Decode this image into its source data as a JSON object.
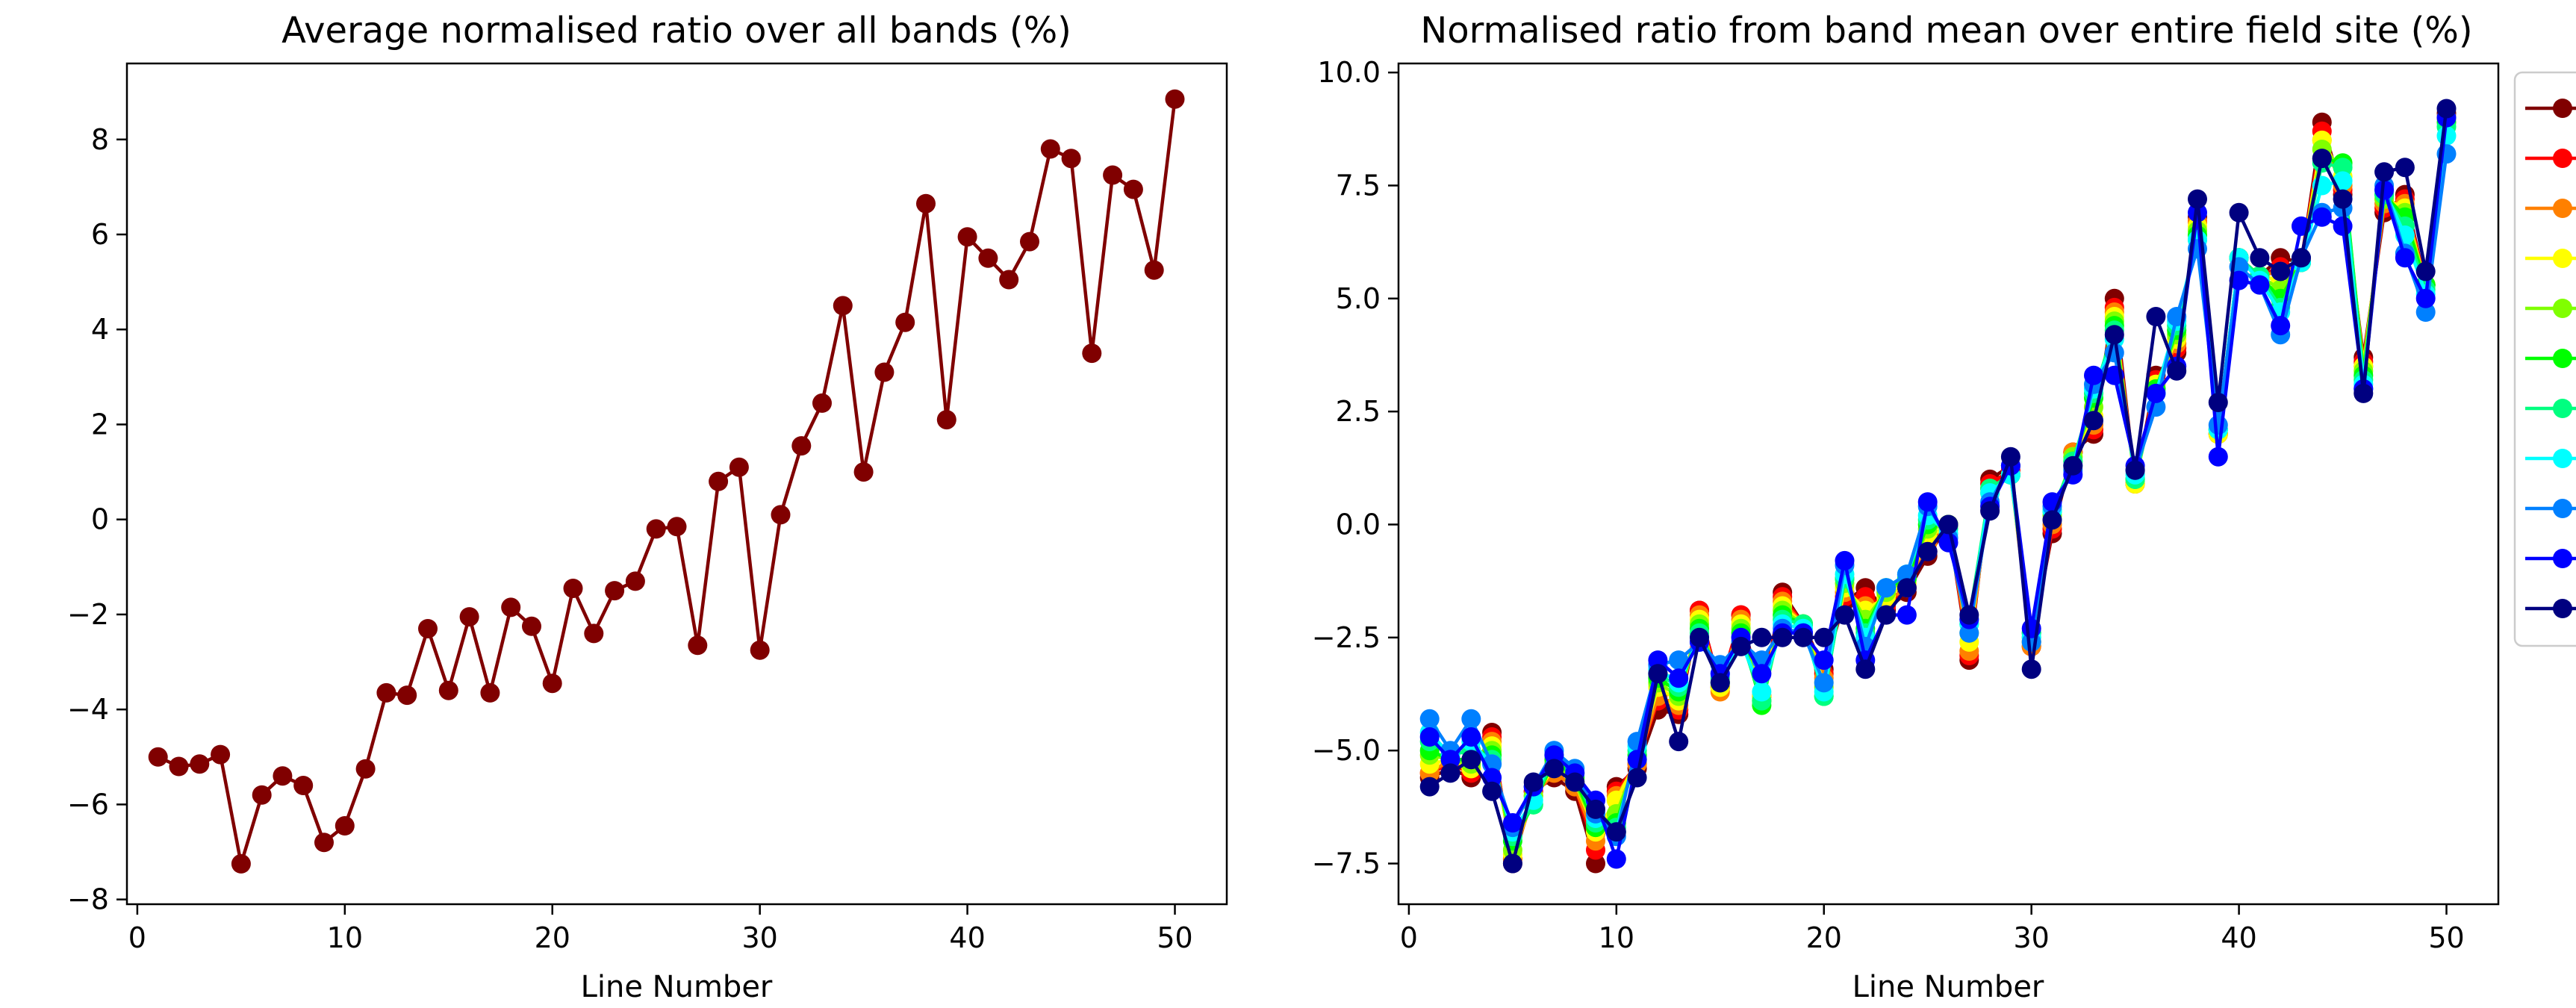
{
  "chart_data": [
    {
      "type": "line",
      "title": "Average normalised ratio over all bands (%)",
      "xlabel": "Line Number",
      "ylabel": "",
      "xlim": [
        -0.5,
        52.5
      ],
      "ylim": [
        -8.1,
        9.6
      ],
      "x_ticks": [
        0,
        10,
        20,
        30,
        40,
        50
      ],
      "y_ticks": [
        -8,
        -6,
        -4,
        -2,
        0,
        2,
        4,
        6,
        8
      ],
      "y_tick_labels": [
        "−8",
        "−6",
        "−4",
        "−2",
        "0",
        "2",
        "4",
        "6",
        "8"
      ],
      "grid": false,
      "x": [
        1,
        2,
        3,
        4,
        5,
        6,
        7,
        8,
        9,
        10,
        11,
        12,
        13,
        14,
        15,
        16,
        17,
        18,
        19,
        20,
        21,
        22,
        23,
        24,
        25,
        26,
        27,
        28,
        29,
        30,
        31,
        32,
        33,
        34,
        35,
        36,
        37,
        38,
        39,
        40,
        41,
        42,
        43,
        44,
        45,
        46,
        47,
        48,
        49,
        50
      ],
      "series": [
        {
          "color": "#800000",
          "values": [
            -5.0,
            -5.2,
            -5.15,
            -4.95,
            -7.25,
            -5.8,
            -5.4,
            -5.6,
            -6.8,
            -6.45,
            -5.25,
            -3.65,
            -3.7,
            -2.3,
            -3.6,
            -2.05,
            -3.65,
            -1.85,
            -2.25,
            -3.45,
            -1.45,
            -2.4,
            -1.5,
            -1.3,
            -0.2,
            -0.15,
            -2.65,
            0.8,
            1.1,
            -2.75,
            0.1,
            1.55,
            2.45,
            4.5,
            1.0,
            3.1,
            4.15,
            6.65,
            2.1,
            5.95,
            5.5,
            5.05,
            5.85,
            7.8,
            7.6,
            3.5,
            7.25,
            6.95,
            5.25,
            8.85
          ]
        }
      ]
    },
    {
      "type": "line",
      "title": "Normalised ratio from band mean over entire field site (%)",
      "xlabel": "Line Number",
      "ylabel": "",
      "xlim": [
        -0.5,
        52.5
      ],
      "ylim": [
        -8.4,
        10.2
      ],
      "x_ticks": [
        0,
        10,
        20,
        30,
        40,
        50
      ],
      "y_ticks": [
        -7.5,
        -5.0,
        -2.5,
        0.0,
        2.5,
        5.0,
        7.5,
        10.0
      ],
      "y_tick_labels": [
        "−7.5",
        "−5.0",
        "−2.5",
        "0.0",
        "2.5",
        "5.0",
        "7.5",
        "10.0"
      ],
      "grid": false,
      "legend_position": "right",
      "x": [
        1,
        2,
        3,
        4,
        5,
        6,
        7,
        8,
        9,
        10,
        11,
        12,
        13,
        14,
        15,
        16,
        17,
        18,
        19,
        20,
        21,
        22,
        23,
        24,
        25,
        26,
        27,
        28,
        29,
        30,
        31,
        32,
        33,
        34,
        35,
        36,
        37,
        38,
        39,
        40,
        41,
        42,
        43,
        44,
        45,
        46,
        47,
        48,
        49,
        50
      ],
      "base": [
        -5.4,
        -5.3,
        -5.3,
        -5.0,
        -7.4,
        -5.9,
        -5.45,
        -5.7,
        -6.9,
        -6.3,
        -5.2,
        -3.7,
        -3.8,
        -2.2,
        -3.6,
        -2.1,
        -3.6,
        -1.9,
        -2.2,
        -3.4,
        -1.4,
        -2.4,
        -1.5,
        -1.3,
        -0.2,
        -0.15,
        -2.6,
        0.8,
        1.1,
        -2.7,
        0.1,
        1.5,
        2.4,
        4.5,
        1.0,
        3.1,
        4.1,
        6.6,
        2.1,
        5.9,
        5.5,
        5.0,
        5.8,
        8.2,
        7.5,
        3.5,
        7.2,
        6.9,
        5.3,
        9.0
      ],
      "series": [
        {
          "color": "#800000",
          "values": [
            -5.6,
            -5.4,
            -5.6,
            -4.6,
            -7.5,
            -5.9,
            -5.6,
            -5.9,
            -7.5,
            -5.8,
            -5.4,
            -4.1,
            -4.2,
            -1.9,
            -3.6,
            -2.0,
            -3.8,
            -1.5,
            -2.2,
            -3.2,
            -1.7,
            -1.4,
            -1.9,
            -1.5,
            -0.7,
            0.0,
            -3.0,
            1.0,
            1.3,
            -2.6,
            -0.2,
            1.6,
            2.0,
            5.0,
            0.9,
            3.3,
            3.8,
            6.8,
            2.0,
            5.9,
            5.5,
            5.9,
            5.8,
            8.9,
            7.3,
            3.7,
            6.9,
            7.3,
            5.3,
            9.1
          ]
        },
        {
          "color": "#ff0000",
          "values": [
            -5.5,
            -5.3,
            -5.5,
            -4.7,
            -7.4,
            -5.9,
            -5.5,
            -5.8,
            -7.2,
            -5.9,
            -5.3,
            -3.9,
            -4.1,
            -1.9,
            -3.6,
            -2.0,
            -3.8,
            -1.6,
            -2.2,
            -3.3,
            -1.6,
            -1.6,
            -1.8,
            -1.4,
            -0.6,
            0.0,
            -2.9,
            0.9,
            1.2,
            -2.7,
            -0.1,
            1.6,
            2.1,
            4.8,
            0.9,
            3.2,
            3.9,
            6.7,
            2.0,
            5.9,
            5.5,
            5.7,
            5.8,
            8.7,
            7.4,
            3.6,
            7.0,
            7.2,
            5.3,
            9.0
          ]
        },
        {
          "color": "#ff8000",
          "values": [
            -5.5,
            -5.2,
            -5.4,
            -4.8,
            -7.4,
            -6.0,
            -5.5,
            -5.8,
            -7.0,
            -6.0,
            -5.3,
            -3.8,
            -4.0,
            -2.0,
            -3.7,
            -2.1,
            -3.9,
            -1.7,
            -2.2,
            -3.4,
            -1.5,
            -1.8,
            -1.7,
            -1.4,
            -0.4,
            0.0,
            -2.8,
            0.8,
            1.1,
            -2.7,
            0.0,
            1.6,
            2.2,
            4.7,
            0.9,
            3.1,
            4.0,
            6.7,
            2.0,
            5.9,
            5.5,
            5.6,
            5.8,
            8.5,
            7.5,
            3.5,
            7.1,
            7.1,
            5.3,
            9.0
          ]
        },
        {
          "color": "#ffff00",
          "values": [
            -5.3,
            -5.2,
            -5.4,
            -4.9,
            -7.3,
            -6.0,
            -5.4,
            -5.7,
            -6.8,
            -6.1,
            -5.2,
            -3.6,
            -3.9,
            -2.1,
            -3.6,
            -2.2,
            -3.8,
            -1.8,
            -2.2,
            -3.5,
            -1.4,
            -1.9,
            -1.6,
            -1.3,
            -0.3,
            0.0,
            -2.6,
            0.7,
            1.1,
            -2.6,
            0.1,
            1.5,
            2.4,
            4.6,
            0.9,
            3.1,
            4.1,
            6.6,
            2.0,
            5.9,
            5.5,
            5.4,
            5.8,
            8.5,
            7.7,
            3.5,
            7.2,
            7.0,
            5.3,
            9.0
          ]
        },
        {
          "color": "#80ff00",
          "values": [
            -5.1,
            -5.2,
            -5.3,
            -5.0,
            -7.2,
            -6.0,
            -5.3,
            -5.7,
            -6.7,
            -6.4,
            -5.2,
            -3.5,
            -3.8,
            -2.2,
            -3.5,
            -2.3,
            -3.9,
            -1.9,
            -2.2,
            -3.6,
            -1.3,
            -2.1,
            -1.5,
            -1.2,
            -0.1,
            0.0,
            -2.4,
            0.7,
            1.1,
            -2.5,
            0.2,
            1.5,
            2.6,
            4.5,
            1.0,
            3.0,
            4.2,
            6.5,
            2.1,
            5.9,
            5.5,
            5.2,
            5.8,
            8.3,
            7.9,
            3.4,
            7.2,
            6.9,
            5.3,
            9.0
          ]
        },
        {
          "color": "#00ff00",
          "values": [
            -5.0,
            -5.2,
            -5.2,
            -5.1,
            -7.0,
            -6.2,
            -5.2,
            -5.6,
            -6.7,
            -6.6,
            -5.1,
            -3.4,
            -3.7,
            -2.3,
            -3.5,
            -2.4,
            -4.0,
            -2.0,
            -2.2,
            -3.8,
            -1.2,
            -2.3,
            -1.4,
            -1.2,
            0.0,
            0.0,
            -2.2,
            0.8,
            1.1,
            -2.4,
            0.3,
            1.4,
            2.8,
            4.4,
            1.0,
            3.0,
            4.3,
            6.4,
            2.1,
            5.9,
            5.5,
            5.0,
            5.8,
            8.1,
            8.0,
            3.3,
            7.3,
            6.8,
            5.3,
            8.9
          ]
        },
        {
          "color": "#00ff80",
          "values": [
            -4.8,
            -5.1,
            -5.0,
            -5.2,
            -6.9,
            -6.2,
            -5.1,
            -5.5,
            -6.6,
            -6.7,
            -5.0,
            -3.3,
            -3.6,
            -2.4,
            -3.4,
            -2.5,
            -3.9,
            -2.1,
            -2.2,
            -3.8,
            -1.2,
            -2.4,
            -1.4,
            -1.1,
            0.1,
            -0.1,
            -2.1,
            0.8,
            1.1,
            -2.4,
            0.3,
            1.4,
            2.9,
            4.3,
            1.0,
            2.9,
            4.4,
            6.3,
            2.1,
            5.9,
            5.5,
            4.8,
            5.8,
            8.0,
            7.9,
            3.2,
            7.3,
            6.6,
            5.2,
            8.8
          ]
        },
        {
          "color": "#00ffff",
          "values": [
            -4.6,
            -5.1,
            -4.8,
            -5.3,
            -6.8,
            -6.1,
            -5.0,
            -5.4,
            -6.5,
            -6.8,
            -4.9,
            -3.2,
            -3.5,
            -2.5,
            -3.3,
            -2.6,
            -3.7,
            -2.2,
            -2.3,
            -3.7,
            -1.1,
            -2.5,
            -1.4,
            -1.1,
            0.2,
            -0.2,
            -2.2,
            0.7,
            1.1,
            -2.5,
            0.3,
            1.3,
            3.0,
            4.1,
            1.1,
            2.9,
            4.5,
            6.3,
            2.1,
            5.9,
            5.4,
            4.7,
            5.8,
            7.5,
            7.6,
            3.1,
            7.4,
            6.4,
            5.1,
            8.6
          ]
        },
        {
          "color": "#0080ff",
          "values": [
            -4.3,
            -5.0,
            -4.3,
            -5.3,
            -6.7,
            -5.8,
            -5.0,
            -5.4,
            -6.4,
            -6.9,
            -4.8,
            -3.1,
            -3.0,
            -2.6,
            -3.1,
            -2.6,
            -3.0,
            -2.3,
            -2.4,
            -3.5,
            -0.9,
            -2.7,
            -1.4,
            -1.1,
            0.4,
            -0.3,
            -2.4,
            0.5,
            1.3,
            -2.6,
            0.4,
            1.2,
            3.1,
            3.8,
            1.2,
            2.6,
            4.6,
            6.1,
            2.2,
            5.7,
            5.3,
            4.2,
            5.9,
            6.9,
            7.0,
            3.0,
            7.5,
            6.0,
            4.7,
            8.2
          ]
        },
        {
          "color": "#0000ff",
          "values": [
            -4.7,
            -5.2,
            -4.7,
            -5.6,
            -6.6,
            -5.8,
            -5.1,
            -5.5,
            -6.1,
            -7.4,
            -5.2,
            -3.0,
            -3.4,
            -2.6,
            -3.3,
            -2.5,
            -3.3,
            -2.4,
            -2.4,
            -3.0,
            -0.8,
            -3.0,
            -2.0,
            -2.0,
            0.5,
            -0.4,
            -2.1,
            0.4,
            1.3,
            -2.3,
            0.5,
            1.1,
            3.3,
            3.3,
            1.3,
            2.9,
            3.5,
            6.9,
            1.5,
            5.4,
            5.3,
            4.4,
            6.6,
            6.8,
            6.6,
            3.0,
            7.4,
            5.9,
            5.0,
            9.0
          ]
        },
        {
          "color": "#000080",
          "values": [
            -5.8,
            -5.5,
            -5.2,
            -5.9,
            -7.5,
            -5.7,
            -5.4,
            -5.7,
            -6.3,
            -6.8,
            -5.6,
            -3.3,
            -4.8,
            -2.5,
            -3.5,
            -2.7,
            -2.5,
            -2.5,
            -2.5,
            -2.5,
            -2.0,
            -3.2,
            -2.0,
            -1.4,
            -0.6,
            0.0,
            -2.0,
            0.3,
            1.5,
            -3.2,
            0.1,
            1.3,
            2.3,
            4.2,
            1.2,
            4.6,
            3.4,
            7.2,
            2.7,
            6.9,
            5.9,
            5.6,
            5.9,
            8.1,
            7.2,
            2.9,
            7.8,
            7.9,
            5.6,
            9.2
          ]
        }
      ]
    }
  ]
}
